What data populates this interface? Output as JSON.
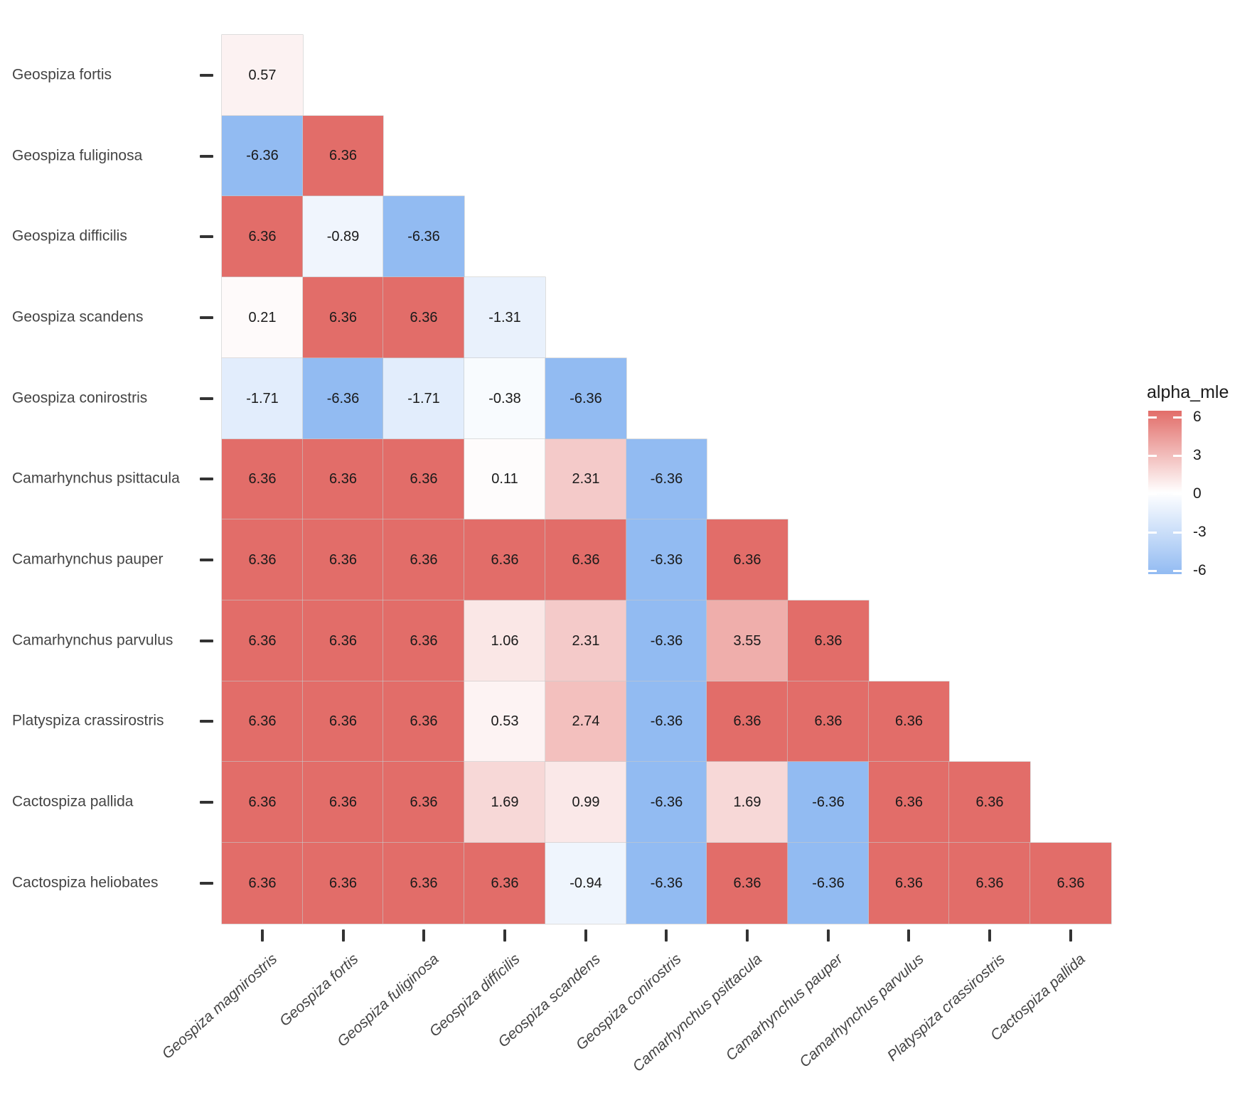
{
  "chart_data": {
    "type": "heatmap",
    "subtype": "lower-triangle-pairwise-matrix",
    "title": "",
    "legend": {
      "title": "alpha_mle",
      "ticks": [
        6,
        3,
        0,
        -3,
        -6
      ],
      "vmax": 6.36,
      "vmin": -6.36,
      "position": "right"
    },
    "colors": {
      "positive_max": "#e26d69",
      "negative_max": "#92bbf2",
      "midpoint": "#ffffff",
      "grid_line": "#c9c9c9",
      "axis_text": "#444444",
      "value_text": "#1a1a1a",
      "background": "#ffffff"
    },
    "rows": [
      "Geospiza fortis",
      "Geospiza fuliginosa",
      "Geospiza difficilis",
      "Geospiza scandens",
      "Geospiza conirostris",
      "Camarhynchus psittacula",
      "Camarhynchus pauper",
      "Camarhynchus parvulus",
      "Platyspiza crassirostris",
      "Cactospiza pallida",
      "Cactospiza heliobates"
    ],
    "cols": [
      "Geospiza magnirostris",
      "Geospiza fortis",
      "Geospiza fuliginosa",
      "Geospiza difficilis",
      "Geospiza scandens",
      "Geospiza conirostris",
      "Camarhynchus psittacula",
      "Camarhynchus pauper",
      "Camarhynchus parvulus",
      "Platyspiza crassirostris",
      "Cactospiza pallida"
    ],
    "values": [
      [
        0.57
      ],
      [
        -6.36,
        6.36
      ],
      [
        6.36,
        -0.89,
        -6.36
      ],
      [
        0.21,
        6.36,
        6.36,
        -1.31
      ],
      [
        -1.71,
        -6.36,
        -1.71,
        -0.38,
        -6.36
      ],
      [
        6.36,
        6.36,
        6.36,
        0.11,
        2.31,
        -6.36
      ],
      [
        6.36,
        6.36,
        6.36,
        6.36,
        6.36,
        -6.36,
        6.36
      ],
      [
        6.36,
        6.36,
        6.36,
        1.06,
        2.31,
        -6.36,
        3.55,
        6.36
      ],
      [
        6.36,
        6.36,
        6.36,
        0.53,
        2.74,
        -6.36,
        6.36,
        6.36,
        6.36
      ],
      [
        6.36,
        6.36,
        6.36,
        1.69,
        0.99,
        -6.36,
        1.69,
        -6.36,
        6.36,
        6.36
      ],
      [
        6.36,
        6.36,
        6.36,
        6.36,
        -0.94,
        -6.36,
        6.36,
        -6.36,
        6.36,
        6.36,
        6.36
      ]
    ]
  }
}
